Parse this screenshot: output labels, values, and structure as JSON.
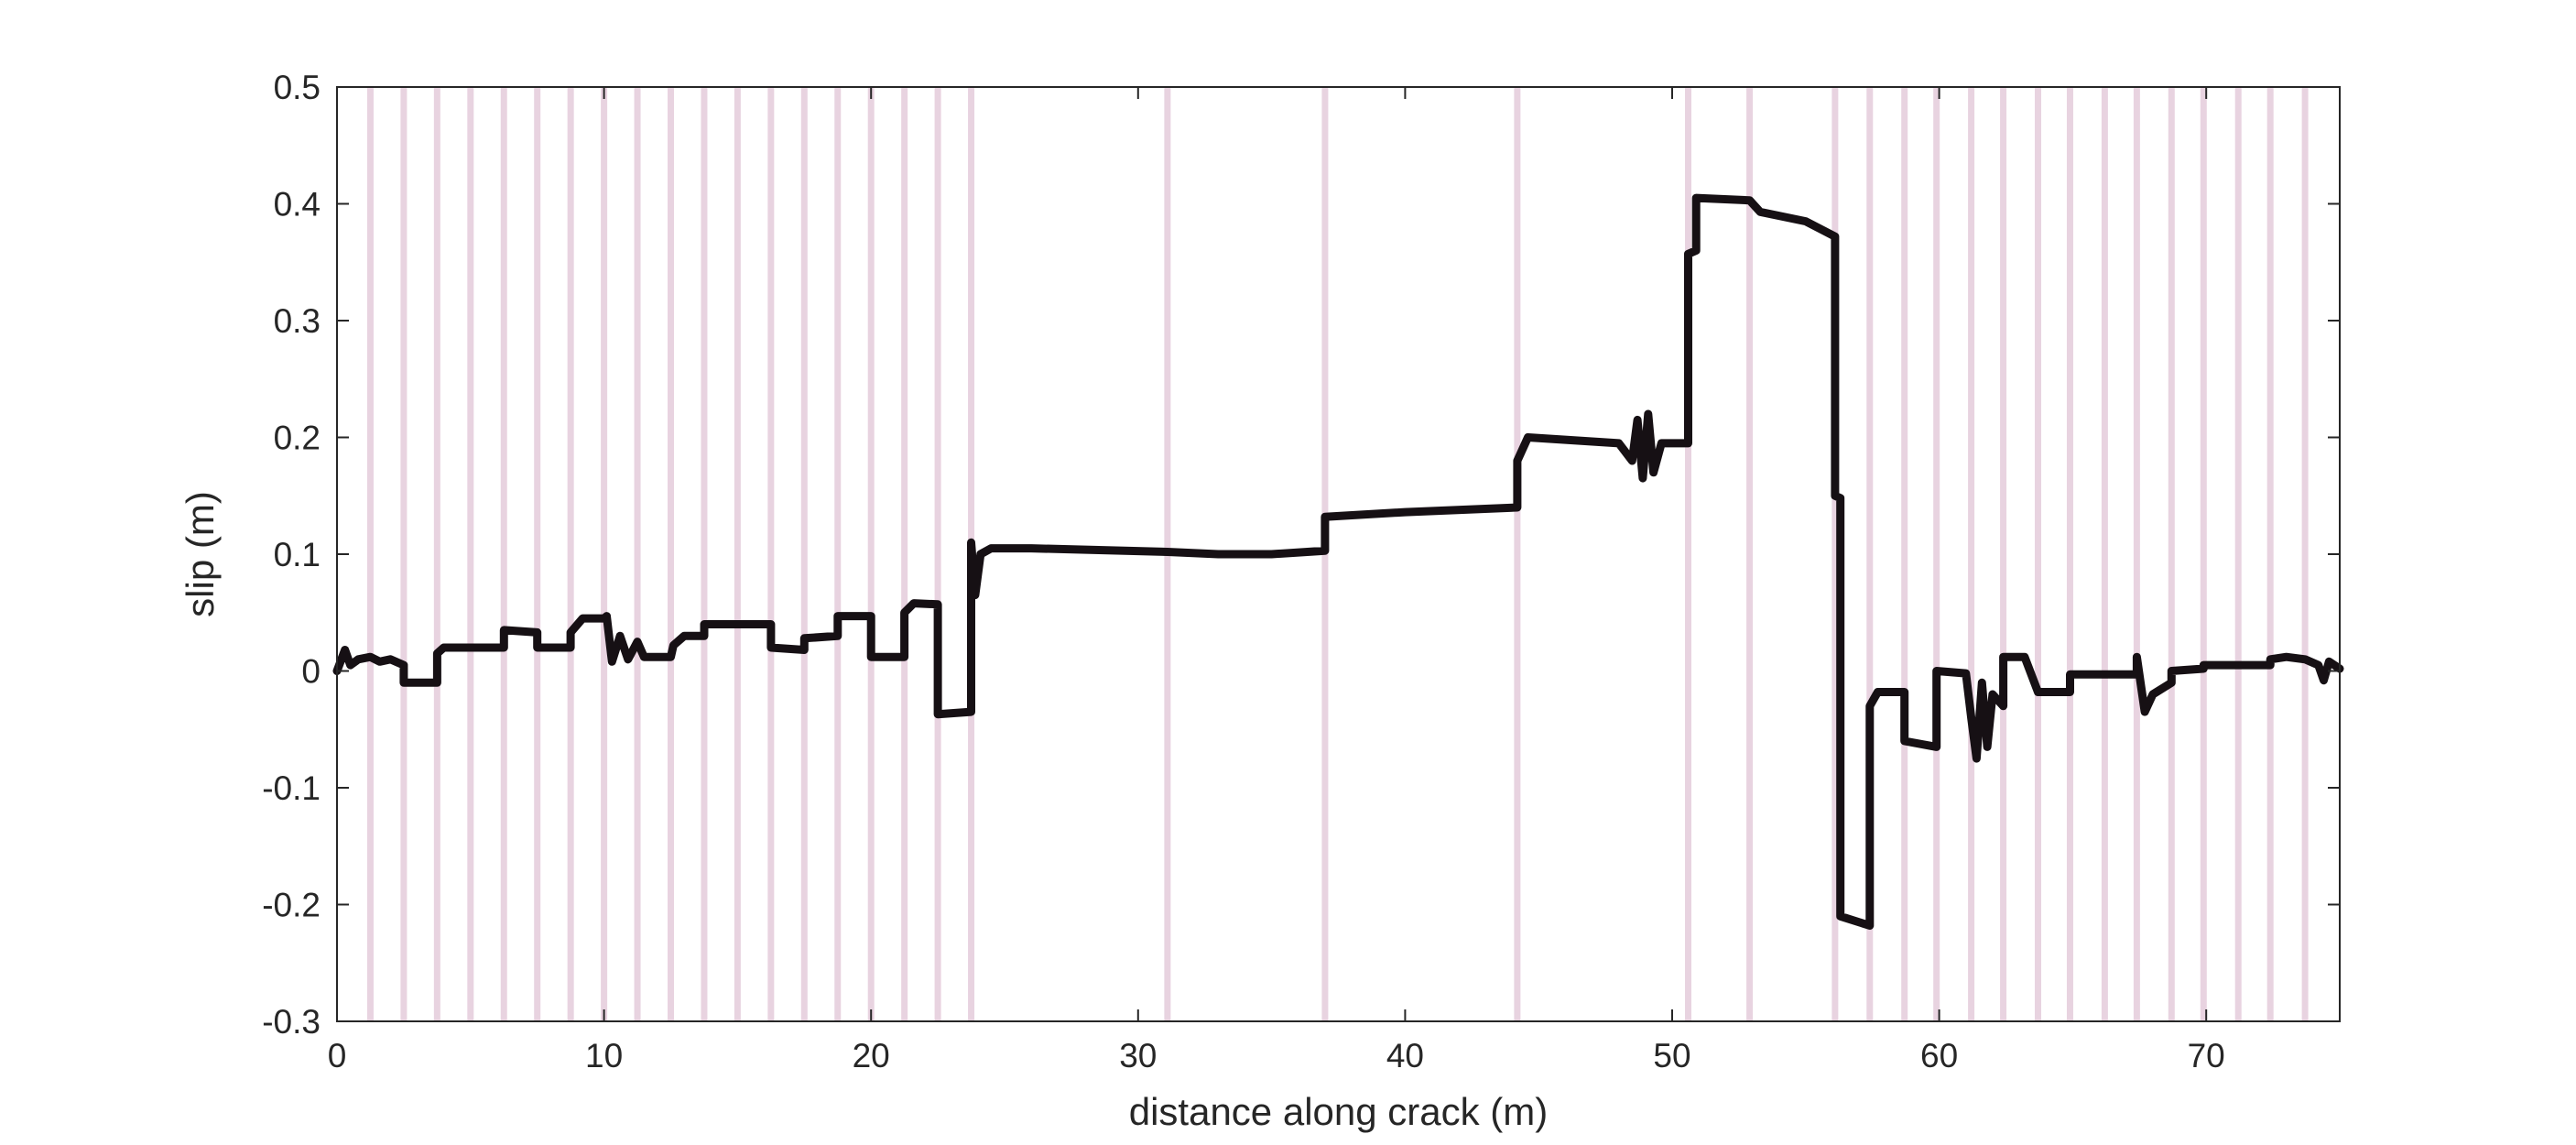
{
  "chart_data": {
    "type": "line",
    "title": "",
    "xlabel": "distance along crack (m)",
    "ylabel": "slip (m)",
    "xlim": [
      0,
      75
    ],
    "ylim": [
      -0.3,
      0.5
    ],
    "xticks": [
      0,
      10,
      20,
      30,
      40,
      50,
      60,
      70
    ],
    "xtick_labels": [
      "0",
      "10",
      "20",
      "30",
      "40",
      "50",
      "60",
      "70"
    ],
    "yticks": [
      -0.3,
      -0.2,
      -0.1,
      0,
      0.1,
      0.2,
      0.3,
      0.4,
      0.5
    ],
    "ytick_labels": [
      "-0.3",
      "-0.2",
      "-0.1",
      "0",
      "0.1",
      "0.2",
      "0.3",
      "0.4",
      "0.5"
    ],
    "grid": false,
    "legend": "none",
    "line_color": "#161014",
    "band_color": "#e8d3e0",
    "boundaries": [
      1.25,
      2.5,
      3.75,
      5.0,
      6.25,
      7.5,
      8.75,
      10.0,
      11.25,
      12.5,
      13.75,
      15.0,
      16.25,
      17.5,
      18.75,
      20.0,
      21.25,
      22.5,
      23.75,
      31.1,
      37.0,
      44.2,
      50.6,
      52.9,
      56.1,
      57.4,
      58.7,
      59.9,
      61.2,
      62.4,
      63.7,
      64.9,
      66.2,
      67.4,
      68.7,
      69.9,
      71.2,
      72.4,
      73.7
    ],
    "series": [
      {
        "points": [
          [
            0,
            0.0
          ],
          [
            0.3,
            0.018
          ],
          [
            0.5,
            0.005
          ],
          [
            0.8,
            0.01
          ],
          [
            1.25,
            0.012
          ],
          [
            1.6,
            0.008
          ],
          [
            2.0,
            0.01
          ],
          [
            2.5,
            0.005
          ],
          [
            2.5,
            -0.01
          ],
          [
            3.75,
            -0.01
          ],
          [
            3.75,
            0.015
          ],
          [
            4.0,
            0.02
          ],
          [
            5.0,
            0.02
          ],
          [
            6.25,
            0.02
          ],
          [
            6.25,
            0.035
          ],
          [
            7.5,
            0.033
          ],
          [
            7.5,
            0.02
          ],
          [
            8.75,
            0.02
          ],
          [
            8.75,
            0.033
          ],
          [
            9.2,
            0.045
          ],
          [
            10.0,
            0.045
          ],
          [
            10.1,
            0.047
          ],
          [
            10.3,
            0.008
          ],
          [
            10.6,
            0.03
          ],
          [
            10.9,
            0.01
          ],
          [
            11.25,
            0.025
          ],
          [
            11.5,
            0.012
          ],
          [
            12.5,
            0.012
          ],
          [
            12.6,
            0.022
          ],
          [
            13.0,
            0.03
          ],
          [
            13.75,
            0.03
          ],
          [
            13.75,
            0.04
          ],
          [
            15.0,
            0.04
          ],
          [
            16.25,
            0.04
          ],
          [
            16.25,
            0.02
          ],
          [
            17.5,
            0.018
          ],
          [
            17.5,
            0.028
          ],
          [
            18.75,
            0.03
          ],
          [
            18.75,
            0.047
          ],
          [
            20.0,
            0.047
          ],
          [
            20.0,
            0.012
          ],
          [
            21.25,
            0.012
          ],
          [
            21.25,
            0.05
          ],
          [
            21.6,
            0.058
          ],
          [
            22.5,
            0.057
          ],
          [
            22.5,
            -0.037
          ],
          [
            23.75,
            -0.035
          ],
          [
            23.75,
            0.11
          ],
          [
            23.9,
            0.065
          ],
          [
            24.1,
            0.1
          ],
          [
            24.5,
            0.105
          ],
          [
            26.0,
            0.105
          ],
          [
            31.1,
            0.102
          ],
          [
            33.0,
            0.1
          ],
          [
            35.0,
            0.1
          ],
          [
            37.0,
            0.103
          ],
          [
            37.0,
            0.132
          ],
          [
            40.0,
            0.136
          ],
          [
            44.2,
            0.14
          ],
          [
            44.2,
            0.18
          ],
          [
            44.6,
            0.2
          ],
          [
            48.0,
            0.195
          ],
          [
            48.5,
            0.18
          ],
          [
            48.7,
            0.215
          ],
          [
            48.9,
            0.165
          ],
          [
            49.1,
            0.22
          ],
          [
            49.3,
            0.17
          ],
          [
            49.6,
            0.195
          ],
          [
            50.6,
            0.195
          ],
          [
            50.6,
            0.357
          ],
          [
            50.9,
            0.36
          ],
          [
            50.9,
            0.405
          ],
          [
            52.9,
            0.403
          ],
          [
            53.3,
            0.393
          ],
          [
            55.0,
            0.385
          ],
          [
            56.1,
            0.372
          ],
          [
            56.1,
            0.15
          ],
          [
            56.3,
            0.148
          ],
          [
            56.3,
            -0.21
          ],
          [
            57.4,
            -0.218
          ],
          [
            57.4,
            -0.03
          ],
          [
            57.7,
            -0.018
          ],
          [
            58.7,
            -0.018
          ],
          [
            58.7,
            -0.06
          ],
          [
            59.9,
            -0.065
          ],
          [
            59.9,
            0.0
          ],
          [
            61.0,
            -0.002
          ],
          [
            61.2,
            -0.04
          ],
          [
            61.4,
            -0.075
          ],
          [
            61.6,
            -0.01
          ],
          [
            61.8,
            -0.065
          ],
          [
            62.0,
            -0.02
          ],
          [
            62.4,
            -0.03
          ],
          [
            62.4,
            0.012
          ],
          [
            63.2,
            0.012
          ],
          [
            63.7,
            -0.018
          ],
          [
            64.9,
            -0.018
          ],
          [
            64.9,
            -0.003
          ],
          [
            66.2,
            -0.003
          ],
          [
            67.4,
            -0.003
          ],
          [
            67.4,
            0.012
          ],
          [
            67.7,
            -0.035
          ],
          [
            68.0,
            -0.02
          ],
          [
            68.7,
            -0.01
          ],
          [
            68.7,
            0.0
          ],
          [
            69.9,
            0.002
          ],
          [
            69.9,
            0.005
          ],
          [
            71.2,
            0.005
          ],
          [
            72.4,
            0.005
          ],
          [
            72.4,
            0.01
          ],
          [
            73.0,
            0.012
          ],
          [
            73.7,
            0.01
          ],
          [
            74.2,
            0.005
          ],
          [
            74.4,
            -0.008
          ],
          [
            74.6,
            0.008
          ],
          [
            75.0,
            0.002
          ]
        ]
      }
    ]
  }
}
